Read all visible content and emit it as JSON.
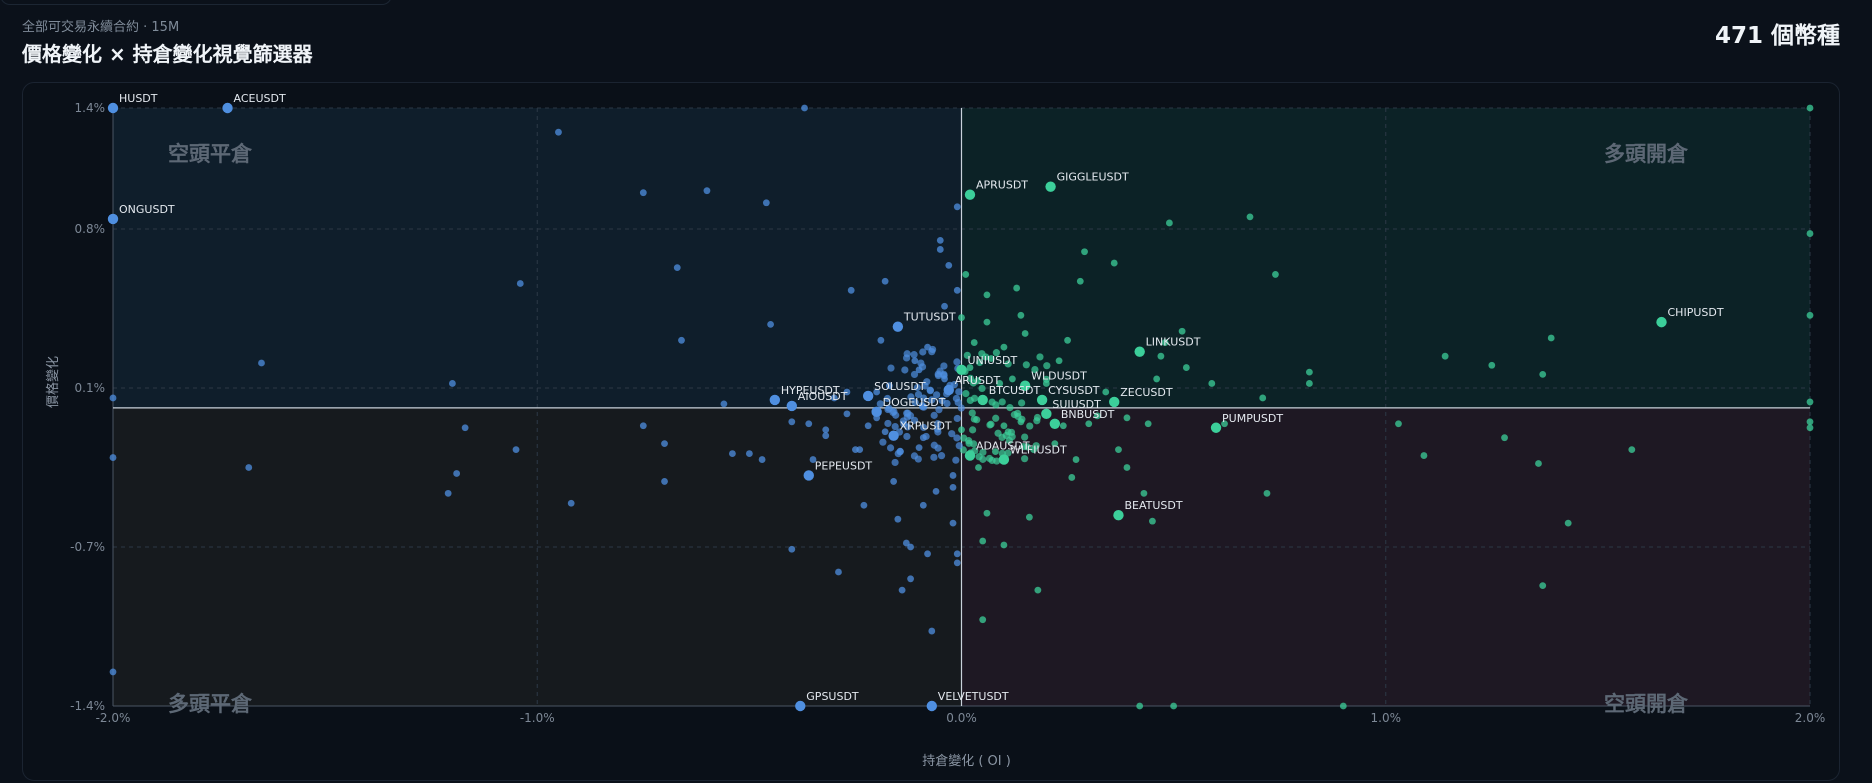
{
  "header": {
    "subtitle": "全部可交易永續合約 · 15M",
    "title": "價格變化 × 持倉變化視覺篩選器",
    "count": "471 個幣種"
  },
  "quadrants": {
    "top_left": "空頭平倉",
    "top_right": "多頭開倉",
    "bottom_left": "多頭平倉",
    "bottom_right": "空頭開倉"
  },
  "colors": {
    "neg_oi": "#4f8fe0",
    "pos_oi": "#3ccf9a",
    "q_top_left": "#0f1e2b",
    "q_top_right": "#0c2226",
    "q_bottom_left": "#161a1e",
    "q_bottom_right": "#1e1823"
  },
  "chart_data": {
    "type": "scatter",
    "xlabel": "持倉變化 ( OI )",
    "ylabel": "價格變化",
    "xlim": [
      -2.0,
      2.0
    ],
    "ylim": [
      -1.4,
      1.4
    ],
    "x_ticks": [
      {
        "v": -2.0,
        "label": "-2.0%"
      },
      {
        "v": -1.0,
        "label": "-1.0%"
      },
      {
        "v": 0.0,
        "label": "0.0%"
      },
      {
        "v": 1.0,
        "label": "1.0%"
      },
      {
        "v": 2.0,
        "label": "2.0%"
      }
    ],
    "y_ticks": [
      {
        "v": 1.4,
        "label": "1.4%"
      },
      {
        "v": 0.8,
        "label": "0.8%"
      },
      {
        "v": 0.1,
        "label": "0.1%"
      },
      {
        "v": -0.7,
        "label": "-0.7%"
      },
      {
        "v": -1.4,
        "label": "-1.4%"
      }
    ],
    "grid": true,
    "labeled_points": [
      {
        "name": "HUSDT",
        "x": -2.0,
        "y": 1.4
      },
      {
        "name": "ACEUSDT",
        "x": -1.73,
        "y": 1.4
      },
      {
        "name": "ONGUSDT",
        "x": -2.0,
        "y": 0.85
      },
      {
        "name": "APRUSDT",
        "x": 0.02,
        "y": 0.97
      },
      {
        "name": "GIGGLEUSDT",
        "x": 0.21,
        "y": 1.01
      },
      {
        "name": "CHIPUSDT",
        "x": 1.65,
        "y": 0.39
      },
      {
        "name": "TUTUSDT",
        "x": -0.15,
        "y": 0.37
      },
      {
        "name": "LINKUSDT",
        "x": 0.42,
        "y": 0.26
      },
      {
        "name": "UNIUSDT",
        "x": 0.0,
        "y": 0.18
      },
      {
        "name": "WLDUSDT",
        "x": 0.15,
        "y": 0.11
      },
      {
        "name": "HYPEUSDT",
        "x": -0.44,
        "y": 0.04
      },
      {
        "name": "AIOUSDT",
        "x": -0.4,
        "y": 0.01
      },
      {
        "name": "SOLUSDT",
        "x": -0.22,
        "y": 0.06
      },
      {
        "name": "ARUSDT",
        "x": -0.03,
        "y": 0.09
      },
      {
        "name": "BTCUSDT",
        "x": 0.05,
        "y": 0.04
      },
      {
        "name": "CYSUSDT",
        "x": 0.19,
        "y": 0.04
      },
      {
        "name": "ZECUSDT",
        "x": 0.36,
        "y": 0.03
      },
      {
        "name": "SUIUSDT",
        "x": 0.2,
        "y": -0.03
      },
      {
        "name": "DOGEUSDT",
        "x": -0.2,
        "y": -0.02
      },
      {
        "name": "BNBUSDT",
        "x": 0.22,
        "y": -0.08
      },
      {
        "name": "PUMPUSDT",
        "x": 0.6,
        "y": -0.1
      },
      {
        "name": "XRPUSDT",
        "x": -0.16,
        "y": -0.14
      },
      {
        "name": "ADAUSDT",
        "x": 0.02,
        "y": -0.24
      },
      {
        "name": "WLFIUSDT",
        "x": 0.1,
        "y": -0.26
      },
      {
        "name": "PEPEUSDT",
        "x": -0.36,
        "y": -0.34
      },
      {
        "name": "BEATUSDT",
        "x": 0.37,
        "y": -0.54
      },
      {
        "name": "GPSUSDT",
        "x": -0.38,
        "y": -1.4
      },
      {
        "name": "VELVETUSDT",
        "x": -0.07,
        "y": -1.4
      }
    ],
    "points": [
      [
        -2.0,
        1.4
      ],
      [
        -2.0,
        0.85
      ],
      [
        -2.0,
        0.05
      ],
      [
        -2.0,
        -0.25
      ],
      [
        -2.0,
        -1.25
      ],
      [
        -1.65,
        0.21
      ],
      [
        -1.68,
        -0.3
      ],
      [
        -1.2,
        0.12
      ],
      [
        -1.17,
        -0.1
      ],
      [
        -1.19,
        -0.33
      ],
      [
        -1.21,
        -0.43
      ],
      [
        -1.05,
        -0.21
      ],
      [
        -1.04,
        0.56
      ],
      [
        -0.95,
        1.28
      ],
      [
        -0.92,
        -0.48
      ],
      [
        -0.75,
        0.98
      ],
      [
        -0.75,
        -0.09
      ],
      [
        -0.7,
        -0.18
      ],
      [
        -0.7,
        -0.37
      ],
      [
        -0.67,
        0.63
      ],
      [
        -0.66,
        0.31
      ],
      [
        -0.6,
        0.99
      ],
      [
        -0.56,
        0.02
      ],
      [
        -0.54,
        -0.23
      ],
      [
        -0.5,
        -0.23
      ],
      [
        -0.47,
        -0.26
      ],
      [
        -0.46,
        0.93
      ],
      [
        -0.45,
        0.38
      ],
      [
        -0.4,
        -0.07
      ],
      [
        -0.4,
        -0.71
      ],
      [
        -0.37,
        1.4
      ],
      [
        -0.36,
        -0.08
      ],
      [
        -0.35,
        -0.26
      ],
      [
        -0.32,
        -0.11
      ],
      [
        -0.32,
        -0.14
      ],
      [
        -0.3,
        0.05
      ],
      [
        -0.29,
        -0.81
      ],
      [
        -0.27,
        -0.03
      ],
      [
        -0.27,
        0.08
      ],
      [
        -0.26,
        0.53
      ],
      [
        -0.25,
        -0.21
      ],
      [
        -0.24,
        -0.21
      ],
      [
        -0.23,
        -0.49
      ],
      [
        -0.22,
        -0.09
      ],
      [
        -0.2,
        -0.05
      ],
      [
        -0.2,
        0.08
      ],
      [
        -0.19,
        0.31
      ],
      [
        -0.18,
        0.57
      ],
      [
        -0.18,
        -0.12
      ],
      [
        -0.17,
        0.11
      ],
      [
        -0.16,
        -0.37
      ],
      [
        -0.15,
        -0.56
      ],
      [
        -0.14,
        -0.89
      ],
      [
        -0.13,
        -0.68
      ],
      [
        -0.12,
        -0.7
      ],
      [
        -0.12,
        -0.84
      ],
      [
        -0.11,
        0.22
      ],
      [
        -0.1,
        0.18
      ],
      [
        -0.1,
        -0.2
      ],
      [
        -0.09,
        -0.15
      ],
      [
        -0.09,
        -0.49
      ],
      [
        -0.08,
        -0.73
      ],
      [
        -0.08,
        0.28
      ],
      [
        -0.07,
        -1.07
      ],
      [
        -0.06,
        -0.42
      ],
      [
        -0.05,
        0.75
      ],
      [
        -0.05,
        0.71
      ],
      [
        -0.04,
        0.14
      ],
      [
        -0.04,
        0.46
      ],
      [
        -0.03,
        0.64
      ],
      [
        -0.02,
        -0.34
      ],
      [
        -0.02,
        -0.4
      ],
      [
        -0.02,
        -0.58
      ],
      [
        -0.01,
        -0.73
      ],
      [
        -0.01,
        -0.77
      ],
      [
        -0.01,
        0.91
      ],
      [
        -0.01,
        0.53
      ],
      [
        0.0,
        -0.11
      ],
      [
        0.0,
        0.41
      ],
      [
        0.01,
        0.6
      ],
      [
        0.02,
        0.19
      ],
      [
        0.03,
        0.3
      ],
      [
        0.04,
        -0.3
      ],
      [
        0.05,
        -0.67
      ],
      [
        0.05,
        -1.02
      ],
      [
        0.06,
        0.51
      ],
      [
        0.06,
        -0.53
      ],
      [
        0.06,
        0.39
      ],
      [
        0.07,
        0.23
      ],
      [
        0.08,
        -0.22
      ],
      [
        0.09,
        0.12
      ],
      [
        0.1,
        -0.09
      ],
      [
        0.1,
        0.28
      ],
      [
        0.1,
        -0.69
      ],
      [
        0.11,
        -0.12
      ],
      [
        0.12,
        0.14
      ],
      [
        0.13,
        0.54
      ],
      [
        0.14,
        0.42
      ],
      [
        0.14,
        -0.07
      ],
      [
        0.15,
        0.34
      ],
      [
        0.16,
        -0.55
      ],
      [
        0.17,
        -0.21
      ],
      [
        0.18,
        -0.89
      ],
      [
        0.2,
        0.12
      ],
      [
        0.22,
        -0.18
      ],
      [
        0.23,
        0.22
      ],
      [
        0.24,
        -0.09
      ],
      [
        0.25,
        0.31
      ],
      [
        0.26,
        -0.35
      ],
      [
        0.27,
        -0.26
      ],
      [
        0.28,
        0.57
      ],
      [
        0.29,
        0.7
      ],
      [
        0.3,
        -0.08
      ],
      [
        0.32,
        -0.04
      ],
      [
        0.34,
        0.08
      ],
      [
        0.36,
        0.65
      ],
      [
        0.37,
        -0.21
      ],
      [
        0.39,
        -0.05
      ],
      [
        0.39,
        -0.3
      ],
      [
        0.42,
        -1.4
      ],
      [
        0.43,
        -0.43
      ],
      [
        0.44,
        -0.08
      ],
      [
        0.45,
        -0.57
      ],
      [
        0.46,
        0.14
      ],
      [
        0.47,
        0.24
      ],
      [
        0.48,
        0.3
      ],
      [
        0.49,
        0.83
      ],
      [
        0.5,
        -1.4
      ],
      [
        0.52,
        0.35
      ],
      [
        0.53,
        0.19
      ],
      [
        0.59,
        0.12
      ],
      [
        0.62,
        -0.08
      ],
      [
        0.68,
        0.86
      ],
      [
        0.71,
        0.05
      ],
      [
        0.72,
        -0.43
      ],
      [
        0.74,
        0.6
      ],
      [
        0.82,
        0.17
      ],
      [
        0.82,
        0.12
      ],
      [
        0.9,
        -1.4
      ],
      [
        1.03,
        -0.08
      ],
      [
        1.09,
        -0.24
      ],
      [
        1.14,
        0.24
      ],
      [
        1.25,
        0.2
      ],
      [
        1.28,
        -0.15
      ],
      [
        1.36,
        -0.28
      ],
      [
        1.37,
        0.16
      ],
      [
        1.39,
        0.32
      ],
      [
        1.37,
        -0.87
      ],
      [
        1.43,
        -0.58
      ],
      [
        1.58,
        -0.21
      ],
      [
        1.65,
        0.39
      ],
      [
        2.0,
        1.4
      ],
      [
        2.0,
        0.78
      ],
      [
        2.0,
        0.42
      ],
      [
        2.0,
        0.03
      ],
      [
        2.0,
        -0.07
      ],
      [
        2.0,
        -0.1
      ]
    ]
  }
}
